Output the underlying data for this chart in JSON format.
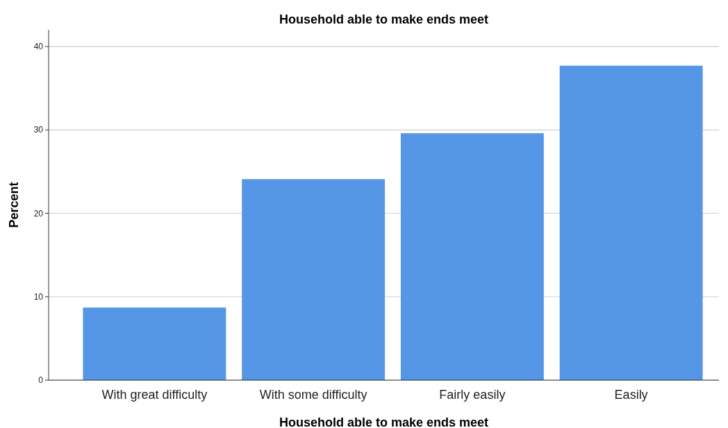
{
  "chart_data": {
    "type": "bar",
    "title": "Household able to make ends meet",
    "xlabel": "Household able to make ends meet",
    "ylabel": "Percent",
    "categories": [
      "With great difficulty",
      "With some difficulty",
      "Fairly easily",
      "Easily"
    ],
    "values": [
      8.7,
      24.1,
      29.6,
      37.7
    ],
    "color": "#5596e6",
    "ylim": [
      0,
      42
    ],
    "yticks": [
      0,
      10,
      20,
      30,
      40
    ],
    "grid": "y"
  }
}
